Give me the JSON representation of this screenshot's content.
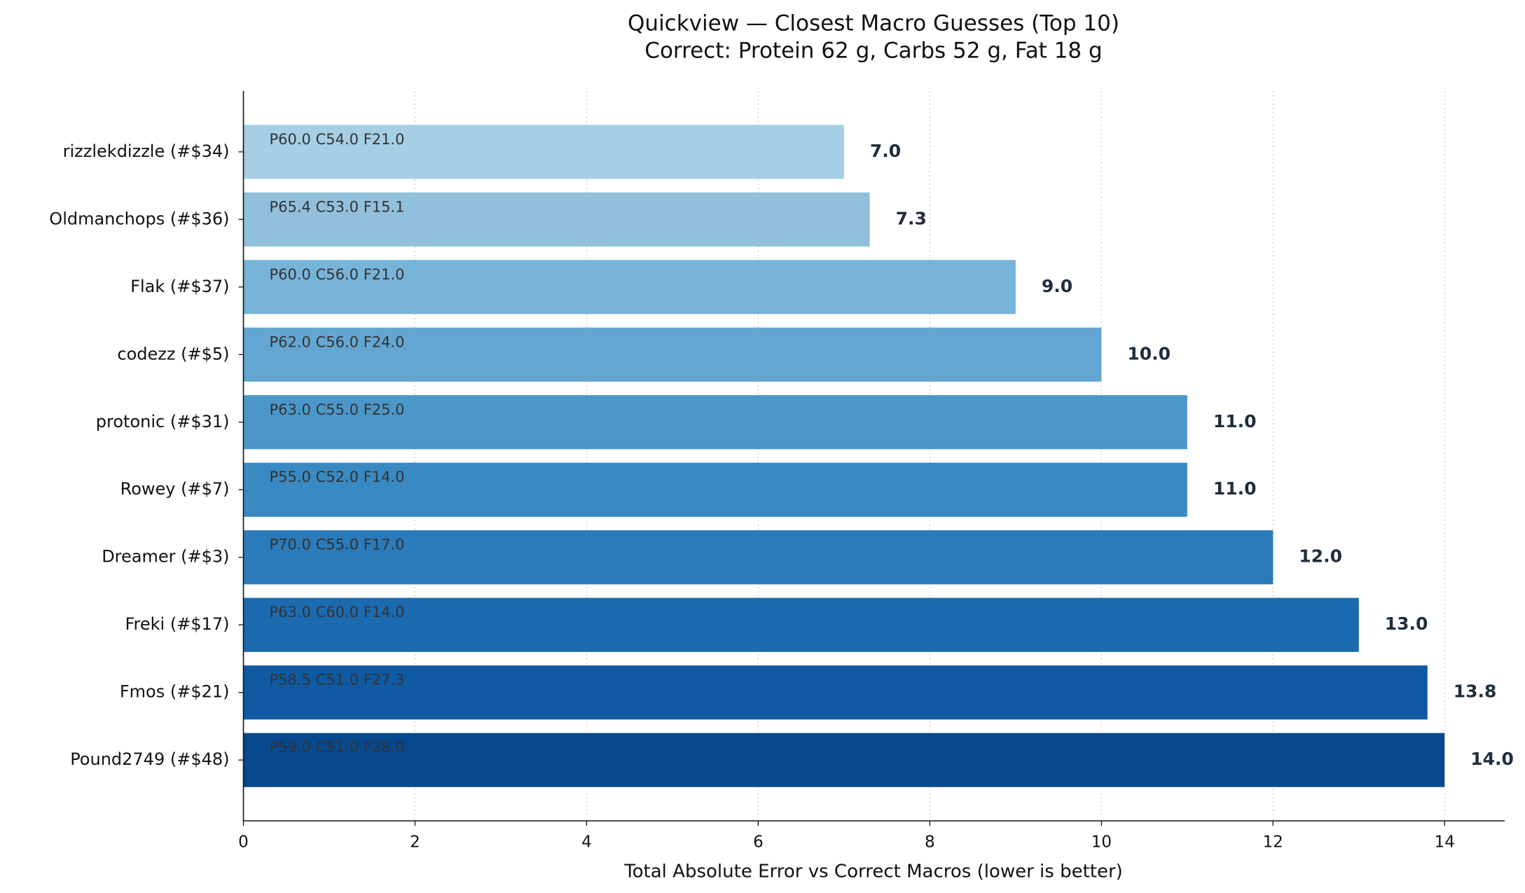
{
  "chart_data": {
    "type": "barh",
    "title": "Quickview — Closest Macro Guesses (Top 10)",
    "subtitle": "Correct: Protein 62 g, Carbs 52 g, Fat 18 g",
    "xlabel": "Total Absolute Error vs Correct Macros (lower is better)",
    "categories": [
      "rizzlekdizzle  (#$34)",
      "Oldmanchops  (#$36)",
      "Flak  (#$37)",
      "codezz  (#$5)",
      "protonic  (#$31)",
      "Rowey  (#$7)",
      "Dreamer  (#$3)",
      "Freki  (#$17)",
      "Fmos  (#$21)",
      "Pound2749  (#$48)"
    ],
    "values": [
      7,
      7.3,
      9,
      10,
      11,
      11,
      12,
      13,
      13.8,
      14
    ],
    "value_labels": [
      "7.0",
      "7.3",
      "9.0",
      "10.0",
      "11.0",
      "11.0",
      "12.0",
      "13.0",
      "13.8",
      "14.0"
    ],
    "annotations": [
      "P60.0  C54.0  F21.0",
      "P65.4  C53.0  F15.1",
      "P60.0  C56.0  F21.0",
      "P62.0  C56.0  F24.0",
      "P63.0  C55.0  F25.0",
      "P55.0  C52.0  F14.0",
      "P70.0  C55.0  F17.0",
      "P63.0  C60.0  F14.0",
      "P58.5  C51.0  F27.3",
      "P59.0  C51.0  F28.0"
    ],
    "colors": [
      "#a6cee4",
      "#91c0dc",
      "#77b4d8",
      "#62a6d1",
      "#4b97c9",
      "#3989c3",
      "#2b7ab9",
      "#1c6aaf",
      "#0f5aa3",
      "#08488e"
    ],
    "xlim": [
      0,
      14.7
    ],
    "xticks": [
      0,
      2,
      4,
      6,
      8,
      10,
      12,
      14
    ],
    "grid": true
  }
}
